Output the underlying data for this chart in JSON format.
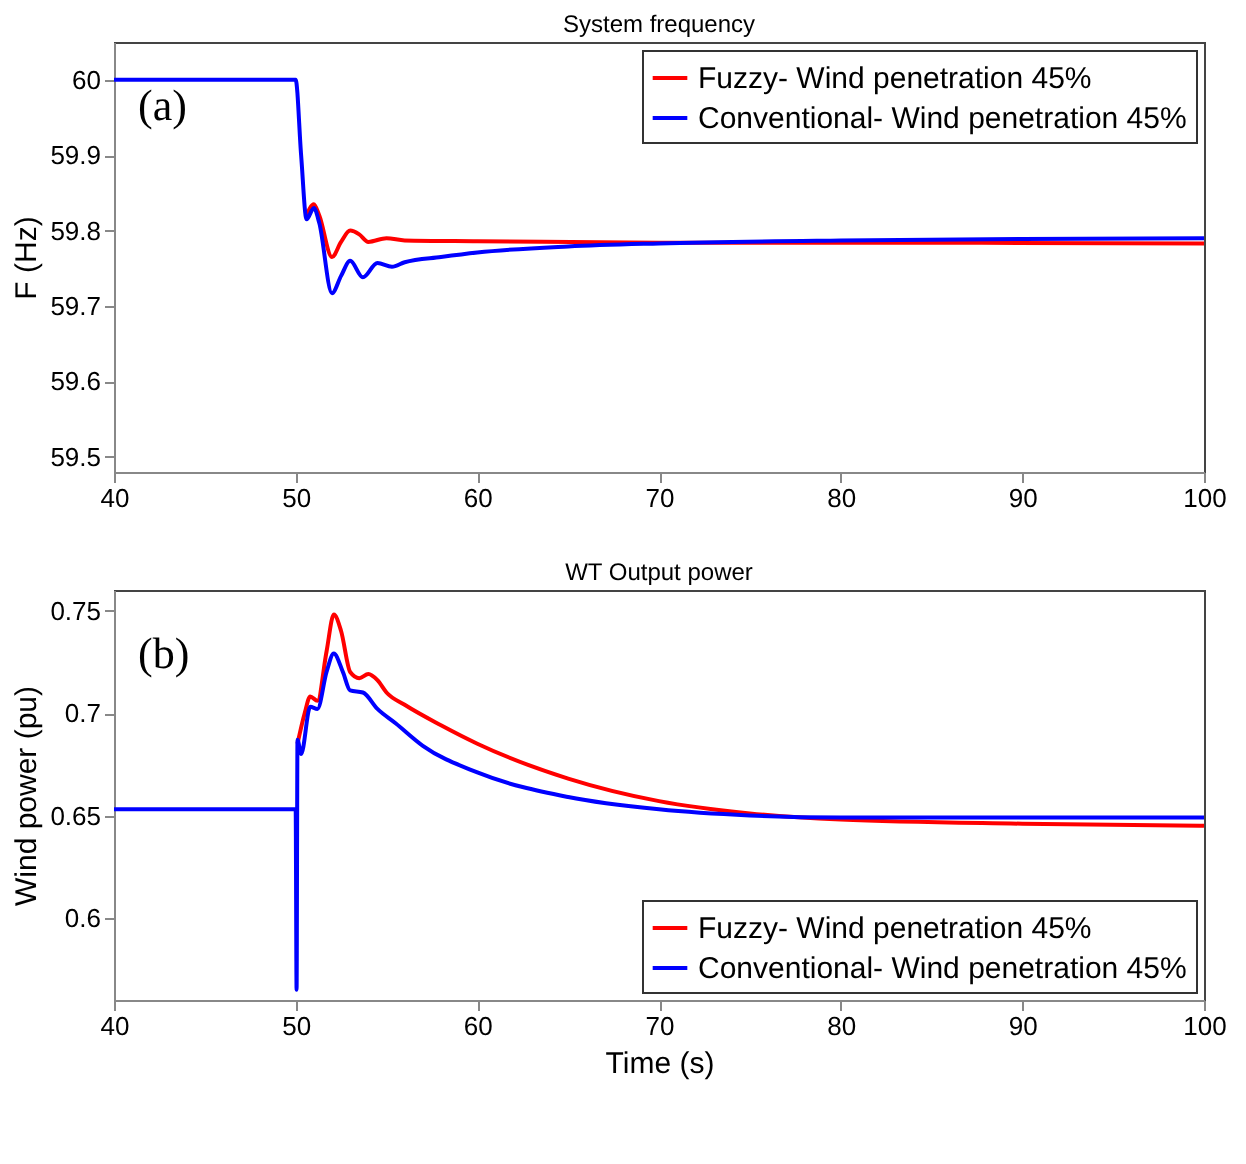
{
  "chart_data": [
    {
      "type": "line",
      "title": "System frequency",
      "ylabel": "F (Hz)",
      "annotations": [
        "(a)"
      ],
      "xlim": [
        40,
        100
      ],
      "xticks": [
        40,
        50,
        60,
        70,
        80,
        90,
        100
      ],
      "ylim": [
        59.48,
        60.05
      ],
      "yticks": [
        59.5,
        59.6,
        59.7,
        59.8,
        59.9,
        {
          "value": 60,
          "label": "60"
        }
      ],
      "grid": false,
      "legend": "top right",
      "series": [
        {
          "name": "Fuzzy- Wind penetration 45%",
          "color": "#ff0000",
          "x": [
            50.6,
            51,
            51.3,
            52,
            52.5,
            53,
            53.5,
            54,
            55,
            56,
            60,
            70,
            80,
            100
          ],
          "values": [
            59.82,
            59.835,
            59.82,
            59.765,
            59.785,
            59.8,
            59.795,
            59.785,
            59.79,
            59.787,
            59.786,
            59.784,
            59.784,
            59.783
          ]
        },
        {
          "name": "Conventional- Wind penetration 45%",
          "color": "#0000ff",
          "x": [
            40,
            50,
            50.3,
            50.6,
            51,
            51.3,
            52,
            52.5,
            53,
            53.7,
            54.5,
            55.3,
            56,
            58,
            60,
            65,
            70,
            80,
            90,
            100
          ],
          "values": [
            60,
            60,
            59.9,
            59.815,
            59.83,
            59.81,
            59.717,
            59.74,
            59.76,
            59.738,
            59.757,
            59.752,
            59.758,
            59.765,
            59.771,
            59.779,
            59.783,
            59.787,
            59.789,
            59.79
          ]
        }
      ]
    },
    {
      "type": "line",
      "title": "WT Output power",
      "xlabel": "Time (s)",
      "ylabel": "Wind power (pu)",
      "annotations": [
        "(b)"
      ],
      "xlim": [
        40,
        100
      ],
      "xticks": [
        40,
        50,
        60,
        70,
        80,
        90,
        100
      ],
      "ylim": [
        0.56,
        0.76
      ],
      "yticks": [
        {
          "value": 0.6,
          "label": "0.6"
        },
        0.65,
        {
          "value": 0.7,
          "label": "0.7"
        },
        0.75
      ],
      "grid": false,
      "legend": "bottom right",
      "series": [
        {
          "name": "Fuzzy- Wind penetration 45%",
          "color": "#ff0000",
          "x": [
            50.1,
            50.5,
            50.8,
            51.2,
            51.7,
            52.1,
            52.5,
            53,
            53.5,
            54,
            54.5,
            55,
            56,
            58,
            60,
            65,
            70,
            75,
            80,
            90,
            100
          ],
          "values": [
            0.685,
            0.7,
            0.708,
            0.706,
            0.73,
            0.748,
            0.74,
            0.72,
            0.717,
            0.719,
            0.716,
            0.71,
            0.704,
            0.694,
            0.685,
            0.668,
            0.657,
            0.651,
            0.648,
            0.646,
            0.645
          ]
        },
        {
          "name": "Conventional- Wind penetration 45%",
          "color": "#0000ff",
          "x": [
            40,
            50,
            50.05,
            50.1,
            50.3,
            50.8,
            51.2,
            51.7,
            52.1,
            52.6,
            53,
            53.7,
            54.5,
            55.5,
            57,
            60,
            65,
            70,
            75,
            80,
            100
          ],
          "values": [
            0.653,
            0.653,
            0.565,
            0.687,
            0.68,
            0.703,
            0.702,
            0.72,
            0.729,
            0.72,
            0.711,
            0.71,
            0.702,
            0.695,
            0.684,
            0.671,
            0.659,
            0.653,
            0.65,
            0.649,
            0.649
          ]
        }
      ]
    }
  ]
}
